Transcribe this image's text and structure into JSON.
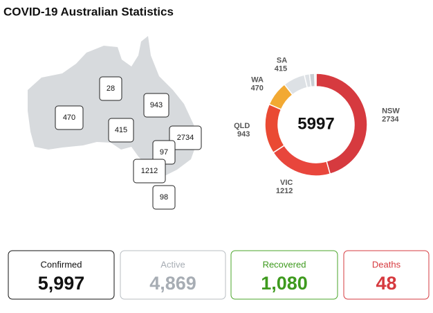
{
  "header": {
    "title": "COVID-19 Australian Statistics"
  },
  "map": {
    "labels": [
      470,
      28,
      943,
      415,
      2734,
      97,
      1212,
      98
    ]
  },
  "chart_data": {
    "type": "pie",
    "categories": [
      "NSW",
      "VIC",
      "QLD",
      "WA",
      "SA",
      null,
      null,
      null
    ],
    "values": [
      2734,
      1212,
      943,
      470,
      415,
      98,
      97,
      28
    ],
    "colors": [
      "#d63a3f",
      "#e8463c",
      "#ea4a33",
      "#f2a933",
      "#dde1e5",
      "#dde1e5",
      "#c9ced3",
      "#dde1e5"
    ],
    "center_label": 5997
  },
  "cards": [
    {
      "label": "Confirmed",
      "value": "5,997",
      "color": "#111111",
      "border": "#111111"
    },
    {
      "label": "Active",
      "value": "4,869",
      "color": "#a7adb4",
      "border": "#b8bdc2"
    },
    {
      "label": "Recovered",
      "value": "1,080",
      "color": "#3e9a1e",
      "border": "#4aa52a"
    },
    {
      "label": "Deaths",
      "value": "48",
      "color": "#d63a3f",
      "border": "#d63a3f"
    }
  ]
}
